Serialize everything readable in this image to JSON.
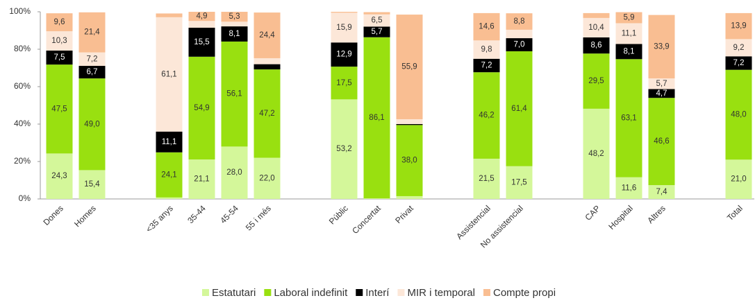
{
  "chart_data": {
    "type": "stacked_bar",
    "categories": [
      "Dones",
      "Homes",
      null,
      "<35 anys",
      "35-44",
      "45-54",
      "55 i més",
      null,
      "Públic",
      "Concertat",
      "Privat",
      null,
      "Assistencial",
      "No assistencial",
      null,
      "CAP",
      "Hospital",
      "Altres",
      null,
      "Total"
    ],
    "series": [
      {
        "name": "Estatutari",
        "color": "#d4f79a",
        "values": [
          24.3,
          15.4,
          null,
          0.8,
          21.1,
          28.0,
          22.0,
          null,
          53.2,
          0.3,
          1.5,
          null,
          21.5,
          17.5,
          null,
          48.2,
          11.6,
          7.4,
          null,
          21.0
        ],
        "value_labels": [
          "24,3",
          "15,4",
          null,
          null,
          "21,1",
          "28,0",
          "22,0",
          null,
          "53,2",
          null,
          null,
          null,
          "21,5",
          "17,5",
          null,
          "48,2",
          "11,6",
          "7,4",
          null,
          "21,0"
        ]
      },
      {
        "name": "Laboral indefinit",
        "color": "#99e010",
        "values": [
          47.5,
          49.0,
          null,
          24.1,
          54.9,
          56.1,
          47.2,
          null,
          17.5,
          86.1,
          38.0,
          null,
          46.2,
          61.4,
          null,
          29.5,
          63.1,
          46.6,
          null,
          48.0
        ],
        "value_labels": [
          "47,5",
          "49,0",
          null,
          "24,1",
          "54,9",
          "56,1",
          "47,2",
          null,
          "17,5",
          "86,1",
          "38,0",
          null,
          "46,2",
          "61,4",
          null,
          "29,5",
          "63,1",
          "46,6",
          null,
          "48,0"
        ]
      },
      {
        "name": "Interí",
        "color": "#000000",
        "values": [
          7.5,
          6.7,
          null,
          11.1,
          15.5,
          8.1,
          2.8,
          null,
          12.9,
          5.7,
          0.5,
          null,
          7.2,
          7.0,
          null,
          8.6,
          8.1,
          4.7,
          null,
          7.2
        ],
        "value_labels": [
          "7,5",
          "6,7",
          null,
          "11,1",
          "15,5",
          "8,1",
          null,
          null,
          "12,9",
          "5,7",
          null,
          null,
          "7,2",
          "7,0",
          null,
          "8,6",
          "8,1",
          "4,7",
          null,
          "7,2"
        ]
      },
      {
        "name": "MIR i temporal",
        "color": "#fce7d8",
        "values": [
          10.3,
          7.2,
          null,
          61.1,
          3.6,
          2.5,
          3.2,
          null,
          15.9,
          6.5,
          2.6,
          null,
          9.8,
          4.5,
          null,
          10.4,
          11.1,
          5.7,
          null,
          9.2
        ],
        "value_labels": [
          "10,3",
          "7,2",
          null,
          "61,1",
          null,
          null,
          null,
          null,
          "15,9",
          "6,5",
          null,
          null,
          "9,8",
          null,
          null,
          "10,4",
          "11,1",
          "5,7",
          null,
          "9,2"
        ]
      },
      {
        "name": "Compte propi",
        "color": "#f9be92",
        "values": [
          9.6,
          21.4,
          null,
          2.0,
          4.9,
          5.3,
          24.4,
          null,
          0.5,
          1.2,
          55.9,
          null,
          14.6,
          8.8,
          null,
          2.6,
          5.9,
          33.9,
          null,
          13.9
        ],
        "value_labels": [
          "9,6",
          "21,4",
          null,
          null,
          "4,9",
          "5,3",
          "24,4",
          null,
          null,
          null,
          "55,9",
          null,
          "14,6",
          "8,8",
          null,
          null,
          "5,9",
          "33,9",
          null,
          "13,9"
        ]
      }
    ],
    "ylim": [
      0,
      100
    ],
    "yticks": [
      {
        "value": 0,
        "label": "0%"
      },
      {
        "value": 20,
        "label": "20%"
      },
      {
        "value": 40,
        "label": "40%"
      },
      {
        "value": 60,
        "label": "60%"
      },
      {
        "value": 80,
        "label": "80%"
      },
      {
        "value": 100,
        "label": "100%"
      }
    ],
    "legend": "bottom"
  }
}
